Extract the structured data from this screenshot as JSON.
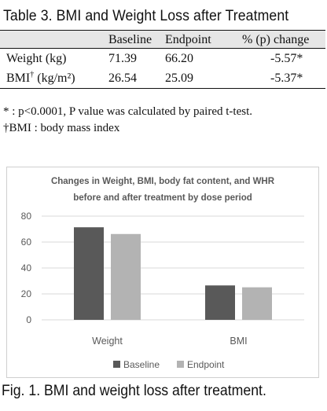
{
  "table": {
    "caption": "Table 3. BMI and Weight Loss after Treatment",
    "columns": [
      "",
      "Baseline",
      "Endpoint",
      "% (p) change"
    ],
    "rows": [
      {
        "label": "Weight (kg)",
        "label_sup": "",
        "label_unit": "",
        "baseline": "71.39",
        "endpoint": "66.20",
        "change": "-5.57*"
      },
      {
        "label": "BMI",
        "label_sup": "†",
        "label_unit": " (kg/m²)",
        "baseline": "26.54",
        "endpoint": "25.09",
        "change": "-5.37*"
      }
    ],
    "notes": [
      "* : p<0.0001, P value was calculated by paired t-test.",
      "†BMI : body mass index"
    ]
  },
  "chart_data": {
    "type": "bar",
    "title": [
      "Changes in Weight, BMI, body fat content, and WHR",
      "before and after treatment by dose period"
    ],
    "categories": [
      "Weight",
      "BMI"
    ],
    "series": [
      {
        "name": "Baseline",
        "values": [
          71.39,
          26.54
        ],
        "color": "#595959"
      },
      {
        "name": "Endpoint",
        "values": [
          66.2,
          25.09
        ],
        "color": "#b3b3b3"
      }
    ],
    "yticks": [
      0,
      20,
      40,
      60,
      80
    ],
    "ylim": [
      0,
      80
    ],
    "grid": true,
    "legend": "bottom"
  },
  "figure": {
    "caption": "Fig. 1. BMI and weight loss after treatment."
  }
}
